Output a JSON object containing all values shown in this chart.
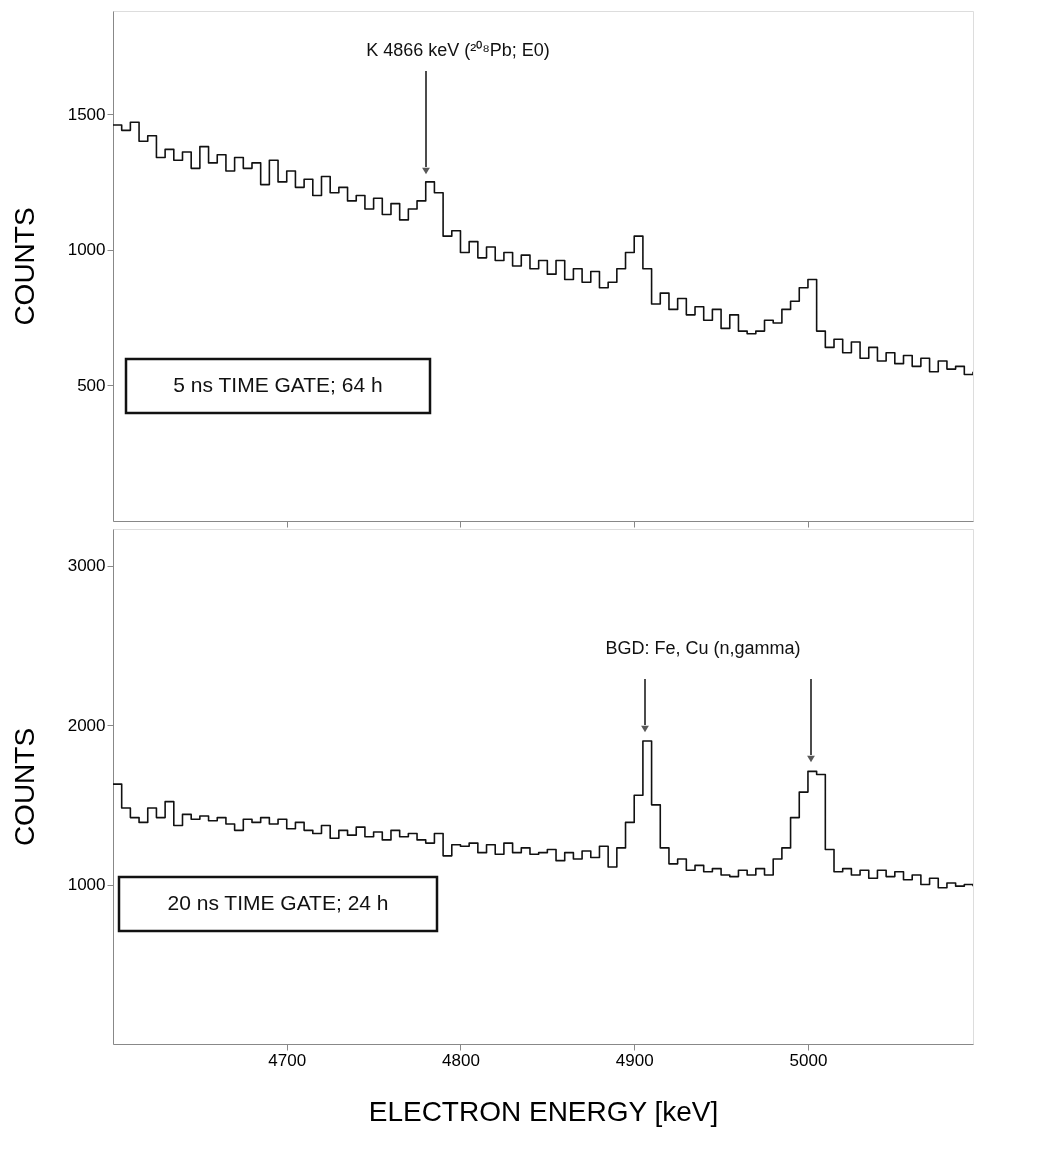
{
  "chart_data": [
    {
      "type": "step",
      "ylabel": "COUNTS",
      "xlim": [
        4600,
        5095
      ],
      "xticks": [
        4700,
        4800,
        4900,
        5000
      ],
      "ylim": [
        0,
        1880
      ],
      "yticks": [
        500,
        1000,
        1500
      ],
      "tick_labels": "y",
      "grid": false,
      "x": [
        4600,
        4605,
        4610,
        4615,
        4620,
        4625,
        4630,
        4635,
        4640,
        4645,
        4650,
        4655,
        4660,
        4665,
        4670,
        4675,
        4680,
        4685,
        4690,
        4695,
        4700,
        4705,
        4710,
        4715,
        4720,
        4725,
        4730,
        4735,
        4740,
        4745,
        4750,
        4755,
        4760,
        4765,
        4770,
        4775,
        4780,
        4785,
        4790,
        4795,
        4800,
        4805,
        4810,
        4815,
        4820,
        4825,
        4830,
        4835,
        4840,
        4845,
        4850,
        4855,
        4860,
        4865,
        4870,
        4875,
        4880,
        4885,
        4890,
        4895,
        4900,
        4905,
        4910,
        4915,
        4920,
        4925,
        4930,
        4935,
        4940,
        4945,
        4950,
        4955,
        4960,
        4965,
        4970,
        4975,
        4980,
        4985,
        4990,
        4995,
        5000,
        5005,
        5010,
        5015,
        5020,
        5025,
        5030,
        5035,
        5040,
        5045,
        5050,
        5055,
        5060,
        5065,
        5070,
        5075,
        5080,
        5085,
        5090,
        5095
      ],
      "series": [
        {
          "color": "#111111",
          "values": [
            1460,
            1440,
            1470,
            1400,
            1420,
            1340,
            1370,
            1330,
            1360,
            1300,
            1380,
            1320,
            1350,
            1290,
            1340,
            1300,
            1320,
            1240,
            1330,
            1250,
            1290,
            1230,
            1260,
            1200,
            1270,
            1210,
            1230,
            1180,
            1200,
            1150,
            1190,
            1130,
            1170,
            1110,
            1150,
            1180,
            1250,
            1210,
            1050,
            1070,
            990,
            1030,
            970,
            1010,
            960,
            990,
            940,
            980,
            930,
            960,
            910,
            960,
            890,
            930,
            880,
            920,
            860,
            880,
            930,
            990,
            1050,
            930,
            800,
            840,
            780,
            820,
            760,
            790,
            740,
            780,
            710,
            760,
            700,
            690,
            700,
            740,
            730,
            780,
            810,
            860,
            890,
            700,
            640,
            670,
            620,
            660,
            600,
            640,
            590,
            620,
            580,
            610,
            570,
            600,
            550,
            590,
            560,
            570,
            540,
            550
          ]
        }
      ],
      "annotations": [
        "K 4866 keV  (²⁰⁸Pb; E0)",
        "5 ns TIME GATE; 64 h"
      ]
    },
    {
      "type": "step",
      "xlabel": "ELECTRON ENERGY  [keV]",
      "ylabel": "COUNTS",
      "xlim": [
        4600,
        5095
      ],
      "xticks": [
        4700,
        4800,
        4900,
        5000
      ],
      "ylim": [
        0,
        3230
      ],
      "yticks": [
        1000,
        2000,
        3000
      ],
      "grid": false,
      "x": [
        4600,
        4605,
        4610,
        4615,
        4620,
        4625,
        4630,
        4635,
        4640,
        4645,
        4650,
        4655,
        4660,
        4665,
        4670,
        4675,
        4680,
        4685,
        4690,
        4695,
        4700,
        4705,
        4710,
        4715,
        4720,
        4725,
        4730,
        4735,
        4740,
        4745,
        4750,
        4755,
        4760,
        4765,
        4770,
        4775,
        4780,
        4785,
        4790,
        4795,
        4800,
        4805,
        4810,
        4815,
        4820,
        4825,
        4830,
        4835,
        4840,
        4845,
        4850,
        4855,
        4860,
        4865,
        4870,
        4875,
        4880,
        4885,
        4890,
        4895,
        4900,
        4905,
        4910,
        4915,
        4920,
        4925,
        4930,
        4935,
        4940,
        4945,
        4950,
        4955,
        4960,
        4965,
        4970,
        4975,
        4980,
        4985,
        4990,
        4995,
        5000,
        5005,
        5010,
        5015,
        5020,
        5025,
        5030,
        5035,
        5040,
        5045,
        5050,
        5055,
        5060,
        5065,
        5070,
        5075,
        5080,
        5085,
        5090,
        5095
      ],
      "series": [
        {
          "color": "#111111",
          "values": [
            1630,
            1480,
            1420,
            1390,
            1480,
            1420,
            1520,
            1370,
            1440,
            1410,
            1430,
            1400,
            1420,
            1380,
            1340,
            1410,
            1390,
            1420,
            1380,
            1410,
            1350,
            1390,
            1340,
            1320,
            1370,
            1290,
            1340,
            1310,
            1360,
            1300,
            1330,
            1280,
            1340,
            1300,
            1320,
            1280,
            1260,
            1320,
            1180,
            1250,
            1240,
            1260,
            1200,
            1250,
            1190,
            1260,
            1200,
            1230,
            1190,
            1200,
            1220,
            1150,
            1200,
            1160,
            1210,
            1170,
            1240,
            1110,
            1230,
            1390,
            1560,
            1900,
            1500,
            1230,
            1130,
            1160,
            1090,
            1120,
            1080,
            1100,
            1060,
            1050,
            1090,
            1060,
            1100,
            1060,
            1160,
            1230,
            1420,
            1580,
            1710,
            1690,
            1220,
            1080,
            1100,
            1060,
            1090,
            1040,
            1090,
            1050,
            1080,
            1030,
            1060,
            1000,
            1040,
            980,
            1010,
            990,
            1000,
            990
          ]
        }
      ],
      "annotations": [
        "BGD: Fe, Cu (n,gamma)",
        "20 ns TIME GATE; 24 h"
      ]
    }
  ]
}
